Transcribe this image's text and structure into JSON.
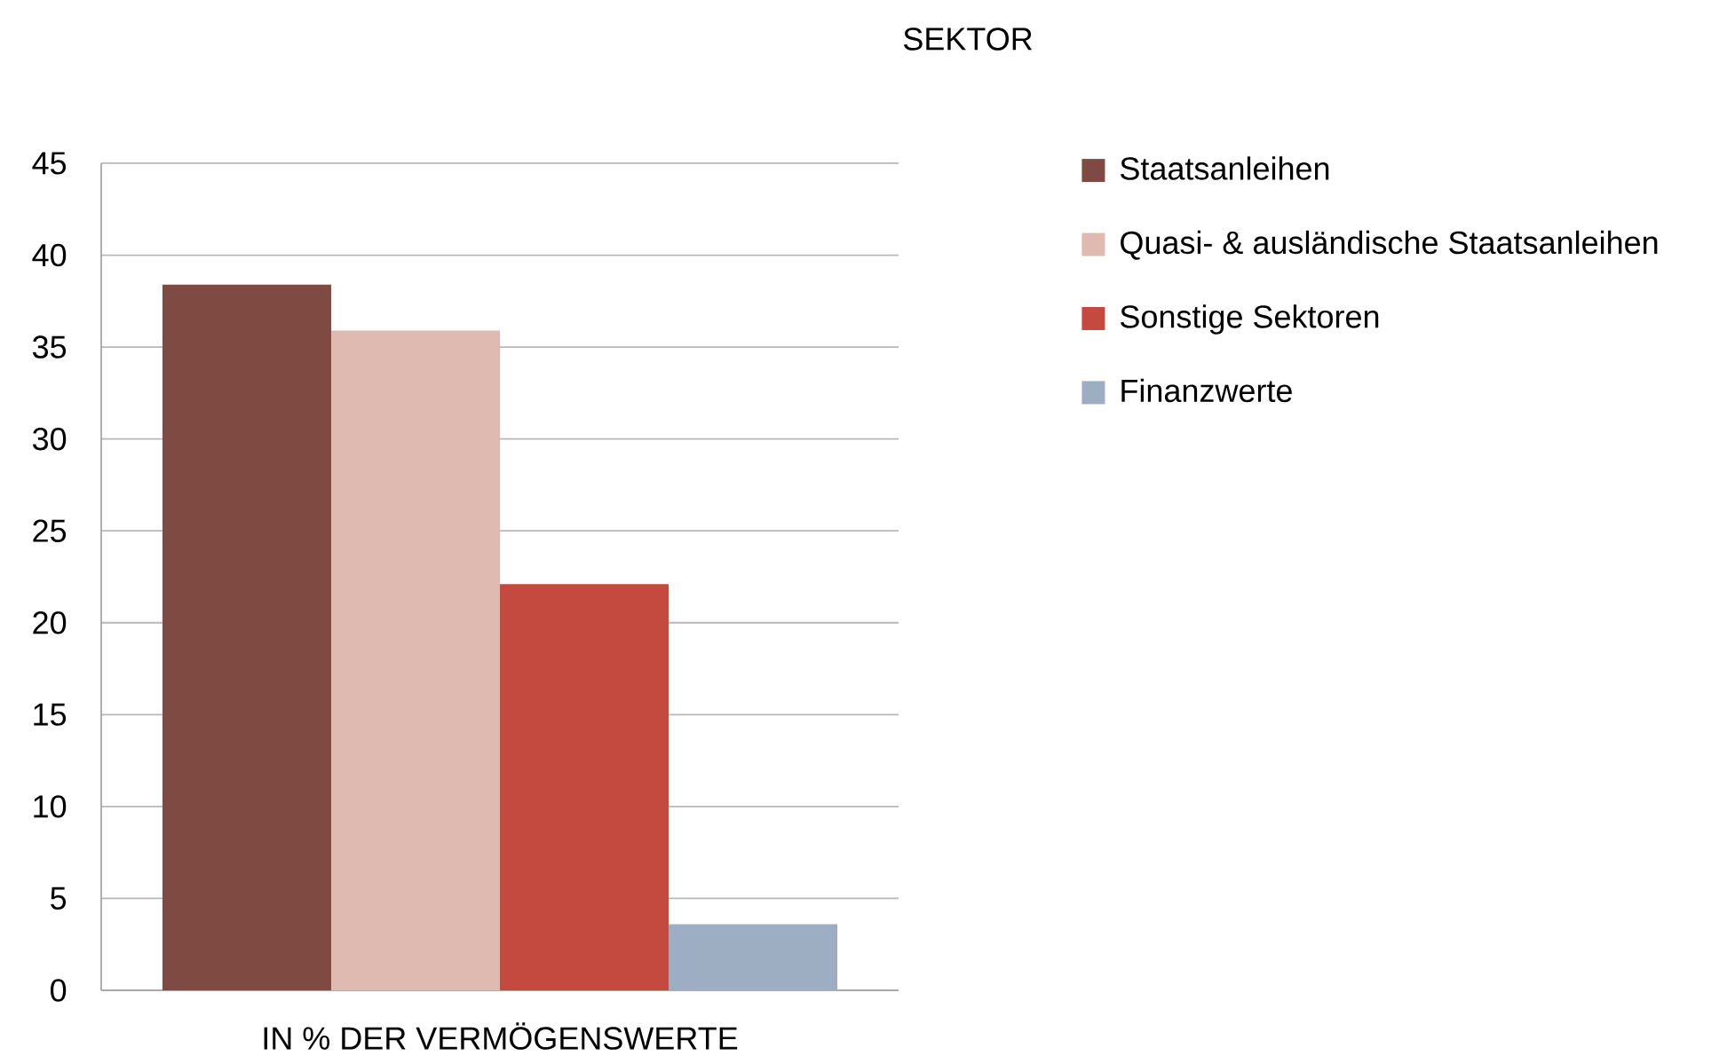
{
  "chart_data": {
    "type": "bar",
    "title": "SEKTOR",
    "categories": [
      "IN % DER VERMÖGENSWERTE"
    ],
    "series": [
      {
        "name": "Staatsanleihen",
        "color": "#7f4a41",
        "values": [
          38.4
        ]
      },
      {
        "name": "Quasi- & ausländische Staatsanleihen",
        "color": "#dfbab1",
        "values": [
          35.9
        ]
      },
      {
        "name": "Sonstige Sektoren",
        "color": "#c4493f",
        "values": [
          22.1
        ]
      },
      {
        "name": "Finanzwerte",
        "color": "#9dadc2",
        "values": [
          3.6
        ]
      }
    ],
    "ylim": [
      0,
      45
    ],
    "yticks": [
      0,
      5,
      10,
      15,
      20,
      25,
      30,
      35,
      40,
      45
    ],
    "grid": "y",
    "legend": "right"
  }
}
